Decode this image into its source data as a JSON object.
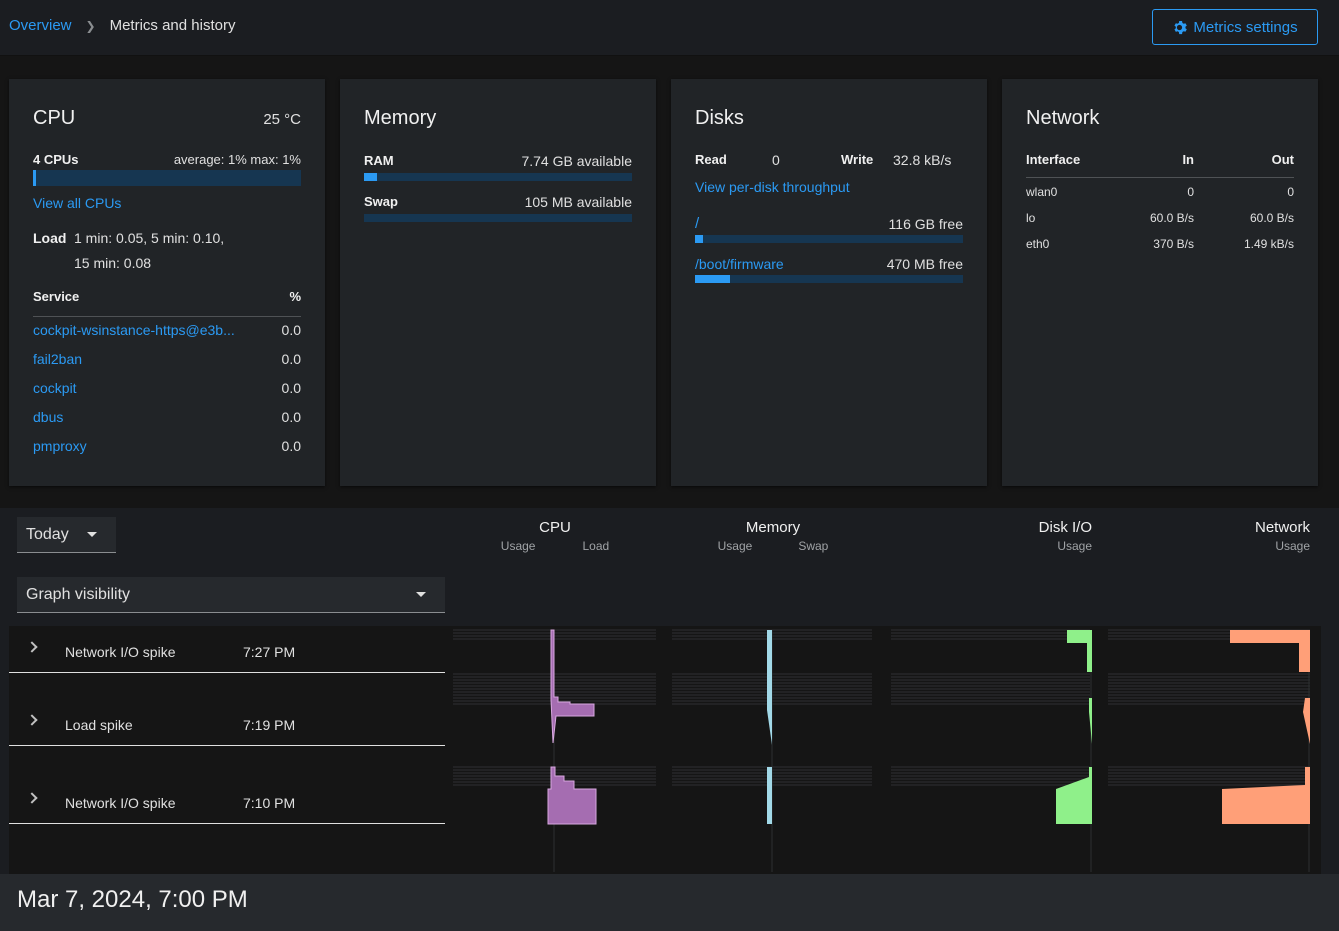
{
  "breadcrumb": {
    "overview": "Overview",
    "current": "Metrics and history"
  },
  "settings_button": "Metrics settings",
  "cpu": {
    "title": "CPU",
    "temp": "25 °C",
    "count": "4 CPUs",
    "usage_summary": "average: 1% max: 1%",
    "usage_fraction": 0.01,
    "view_all": "View all CPUs",
    "load_label": "Load",
    "load_line1": "1 min: 0.05, 5 min: 0.10,",
    "load_line2": "15 min: 0.08",
    "service_header": "Service",
    "percent_header": "%",
    "services": [
      {
        "name": "cockpit-wsinstance-https@e3b...",
        "value": "0.0"
      },
      {
        "name": "fail2ban",
        "value": "0.0"
      },
      {
        "name": "cockpit",
        "value": "0.0"
      },
      {
        "name": "dbus",
        "value": "0.0"
      },
      {
        "name": "pmproxy",
        "value": "0.0"
      }
    ]
  },
  "memory": {
    "title": "Memory",
    "ram_label": "RAM",
    "ram_value": "7.74 GB available",
    "ram_fraction": 0.05,
    "swap_label": "Swap",
    "swap_value": "105 MB available",
    "swap_fraction": 0.0
  },
  "disks": {
    "title": "Disks",
    "read_label": "Read",
    "read_value": "0",
    "write_label": "Write",
    "write_value": "32.8 kB/s",
    "per_disk": "View per-disk throughput",
    "mounts": [
      {
        "path": "/",
        "free": "116 GB free",
        "fraction": 0.03
      },
      {
        "path": "/boot/firmware",
        "free": "470 MB free",
        "fraction": 0.13
      }
    ]
  },
  "network": {
    "title": "Network",
    "col_interface": "Interface",
    "col_in": "In",
    "col_out": "Out",
    "rows": [
      {
        "iface": "wlan0",
        "in": "0",
        "out": "0"
      },
      {
        "iface": "lo",
        "in": "60.0 B/s",
        "out": "60.0 B/s"
      },
      {
        "iface": "eth0",
        "in": "370 B/s",
        "out": "1.49 kB/s"
      }
    ]
  },
  "history": {
    "range": "Today",
    "visibility": "Graph visibility",
    "columns": [
      {
        "title": "CPU",
        "subs": [
          "Usage",
          "Load"
        ]
      },
      {
        "title": "Memory",
        "subs": [
          "Usage",
          "Swap"
        ]
      },
      {
        "title": "Disk I/O",
        "subs": [
          "Usage"
        ]
      },
      {
        "title": "Network",
        "subs": [
          "Usage"
        ]
      }
    ],
    "events": [
      {
        "name": "Network I/O spike",
        "time": "7:27 PM"
      },
      {
        "name": "Load spike",
        "time": "7:19 PM"
      },
      {
        "name": "Network I/O spike",
        "time": "7:10 PM"
      }
    ],
    "date": "Mar 7, 2024, 7:00 PM",
    "colors": {
      "cpu": "#a56db1",
      "cpu_light": "#d8a8e0",
      "memory": "#a2d9e8",
      "disk": "#8ff08a",
      "network": "#ff9f78"
    }
  }
}
